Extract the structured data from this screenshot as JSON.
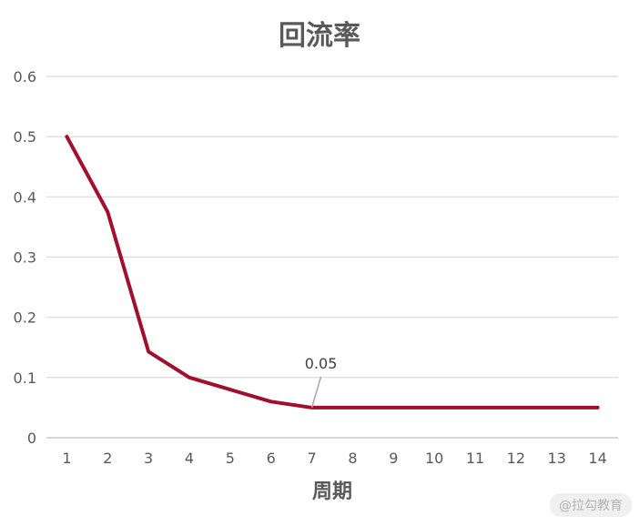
{
  "chart_data": {
    "type": "line",
    "title": "回流率",
    "xlabel": "周期",
    "ylabel": "",
    "x": [
      1,
      2,
      3,
      4,
      5,
      6,
      7,
      8,
      9,
      10,
      11,
      12,
      13,
      14
    ],
    "series": [
      {
        "values": [
          0.5,
          0.375,
          0.143,
          0.1,
          0.08,
          0.06,
          0.05,
          0.05,
          0.05,
          0.05,
          0.05,
          0.05,
          0.05,
          0.05
        ],
        "color": "#a10f2b"
      }
    ],
    "ylim": [
      0,
      0.6
    ],
    "yticks": [
      "0",
      "0.1",
      "0.2",
      "0.3",
      "0.4",
      "0.5",
      "0.6"
    ],
    "grid": true,
    "annotations": [
      {
        "x": 7,
        "y": 0.05,
        "text": "0.05"
      }
    ]
  },
  "watermark": "@拉勾教育"
}
